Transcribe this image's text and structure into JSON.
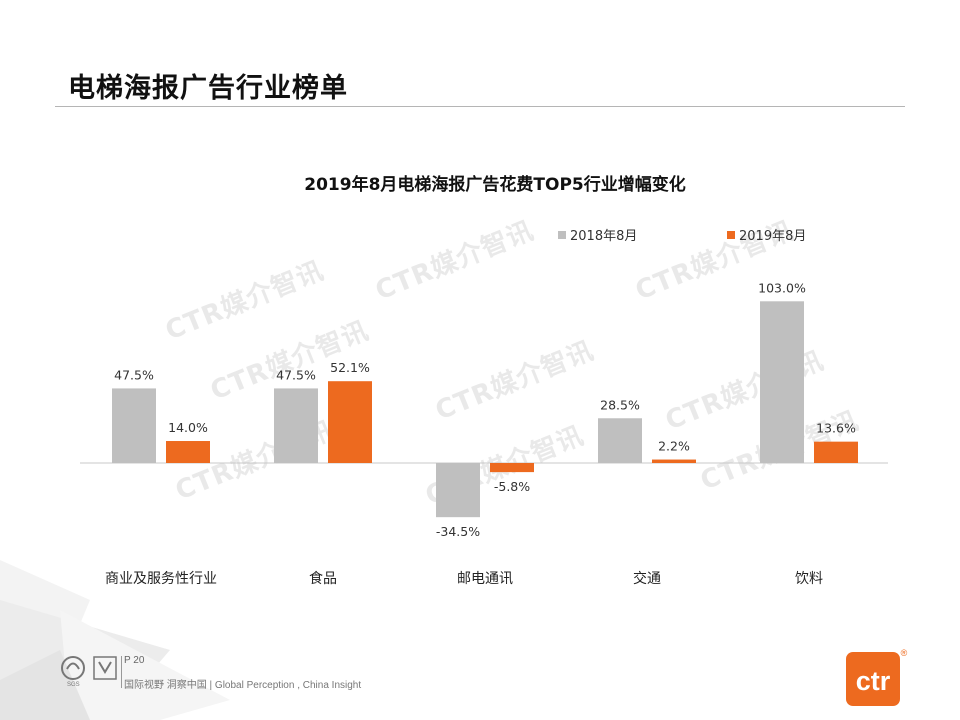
{
  "page": {
    "title": "电梯海报广告行业榜单"
  },
  "chart_data": {
    "type": "bar",
    "title": "2019年8月电梯海报广告花费TOP5行业增幅变化",
    "categories": [
      "商业及服务性行业",
      "食品",
      "邮电通讯",
      "交通",
      "饮料"
    ],
    "series": [
      {
        "name": "2018年8月",
        "color": "#bfbfbf",
        "values": [
          47.5,
          47.5,
          -34.5,
          28.5,
          103.0
        ],
        "labels": [
          "47.5%",
          "47.5%",
          "-34.5%",
          "28.5%",
          "103.0%"
        ]
      },
      {
        "name": "2019年8月",
        "color": "#ed6a1f",
        "values": [
          14.0,
          52.1,
          -5.8,
          2.2,
          13.6
        ],
        "labels": [
          "14.0%",
          "52.1%",
          "-5.8%",
          "2.2%",
          "13.6%"
        ]
      }
    ],
    "unit": "%",
    "ylim": [
      -40,
      110
    ],
    "legend": "top-right",
    "grid": false
  },
  "watermarks": [
    "CTR媒介智讯",
    "CTR媒介智讯",
    "CTR媒介智讯",
    "CTR媒介智讯",
    "CTR媒介智讯",
    "CTR媒介智讯",
    "CTR媒介智讯",
    "CTR媒介智讯",
    "CTR媒介智讯"
  ],
  "footer": {
    "page_number": "P 20",
    "slogan": "国际视野 洞察中国 | Global Perception , China Insight",
    "logo_text": "ctr",
    "logo_mark": "®",
    "cert_text": "SGS"
  }
}
